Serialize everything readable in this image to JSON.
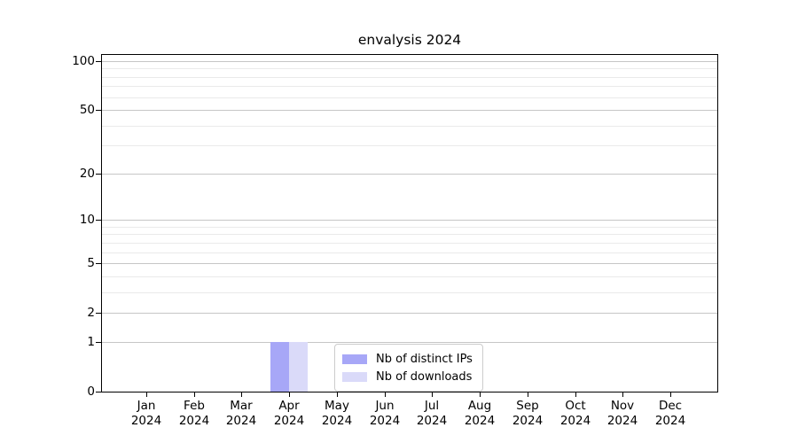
{
  "chart_data": {
    "type": "bar",
    "title": "envalysis 2024",
    "x_months": [
      "Jan",
      "Feb",
      "Mar",
      "Apr",
      "May",
      "Jun",
      "Jul",
      "Aug",
      "Sep",
      "Oct",
      "Nov",
      "Dec"
    ],
    "x_year": "2024",
    "series": [
      {
        "name": "Nb of distinct IPs",
        "color": "#a7a7f7",
        "values": [
          0,
          0,
          0,
          1,
          0,
          0,
          0,
          0,
          0,
          0,
          0,
          0
        ]
      },
      {
        "name": "Nb of downloads",
        "color": "#dadaf9",
        "values": [
          0,
          0,
          0,
          1,
          0,
          0,
          0,
          0,
          0,
          0,
          0,
          0
        ]
      }
    ],
    "y_scale": "log1p",
    "y_major_values": [
      100,
      50,
      20,
      10,
      5,
      2,
      1,
      0
    ],
    "y_minor_values": [
      3,
      4,
      6,
      7,
      8,
      9,
      30,
      40,
      60,
      70,
      80,
      90
    ],
    "ylim": [
      0,
      112
    ],
    "grid": true,
    "legend_position": "lower center"
  },
  "colors": {
    "major_grid": "#c6c6c6",
    "minor_grid": "#eaeaea",
    "spine": "#000000",
    "legend_border": "#cccccc"
  }
}
